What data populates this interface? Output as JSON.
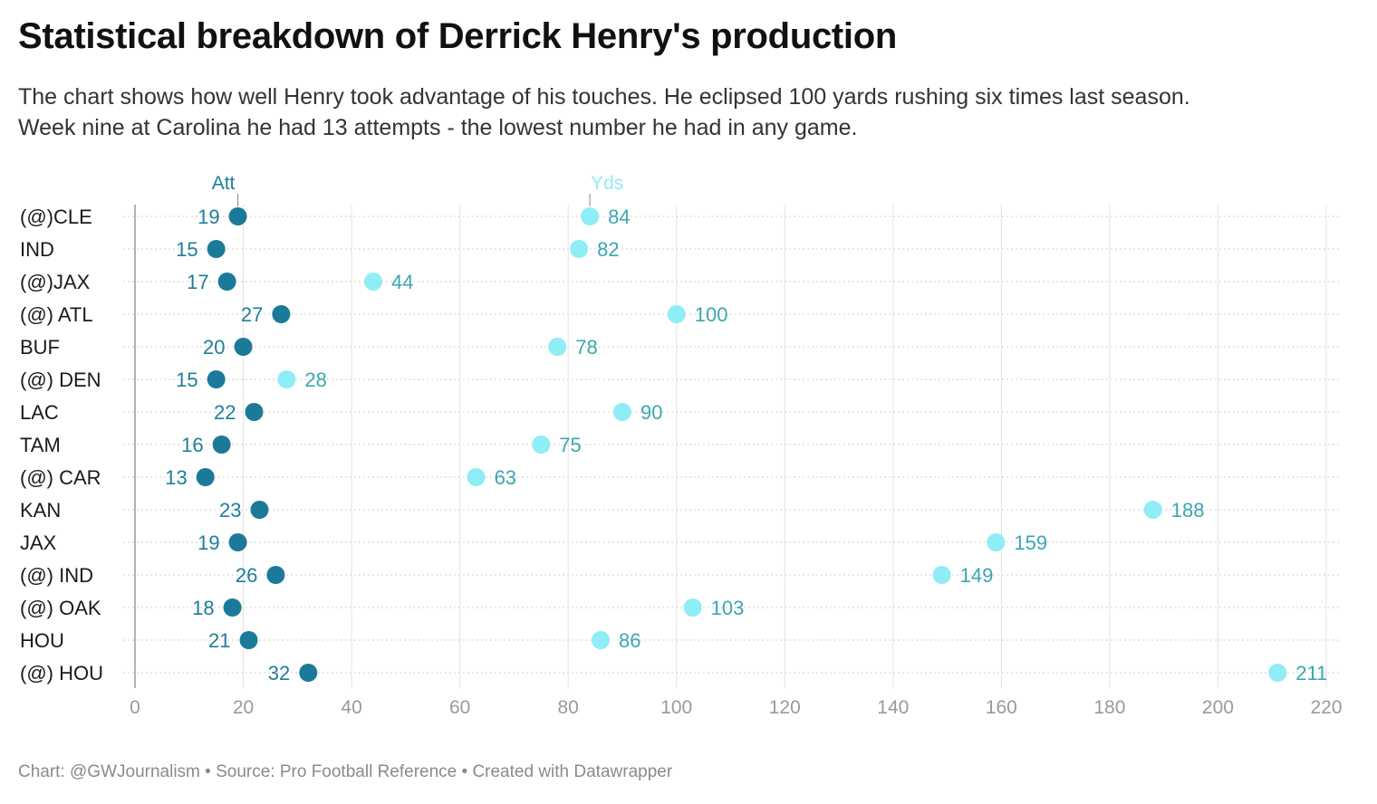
{
  "title": "Statistical breakdown of Derrick Henry's production",
  "subtitle_lines": [
    "The chart shows how well Henry took advantage of his touches. He eclipsed 100 yards rushing six times last season.",
    "Week nine at Carolina he had 13 attempts - the lowest number he had in any game."
  ],
  "footer": "Chart: @GWJournalism • Source: Pro Football Reference • Created with Datawrapper",
  "colors": {
    "att": "#1b7a99",
    "yds": "#8eedf5",
    "att_label": "#1f7e98",
    "yds_label": "#3aa7b0",
    "grid": "#e3e3e3",
    "axis": "#9a9a9a"
  },
  "chart_data": {
    "type": "range-dot",
    "series_labels": {
      "att": "Att",
      "yds": "Yds"
    },
    "categories": [
      "(@)CLE",
      "IND",
      "(@)JAX",
      "(@) ATL",
      "BUF",
      "(@) DEN",
      "LAC",
      "TAM",
      "(@) CAR",
      "KAN",
      "JAX",
      "(@) IND",
      "(@) OAK",
      "HOU",
      "(@) HOU"
    ],
    "att": [
      19,
      15,
      17,
      27,
      20,
      15,
      22,
      16,
      13,
      23,
      19,
      26,
      18,
      21,
      32
    ],
    "yds": [
      84,
      82,
      44,
      100,
      78,
      28,
      90,
      75,
      63,
      188,
      159,
      149,
      103,
      86,
      211
    ],
    "xlim": [
      0,
      220
    ],
    "xticks": [
      0,
      20,
      40,
      60,
      80,
      100,
      120,
      140,
      160,
      180,
      200,
      220
    ],
    "grid": true
  }
}
